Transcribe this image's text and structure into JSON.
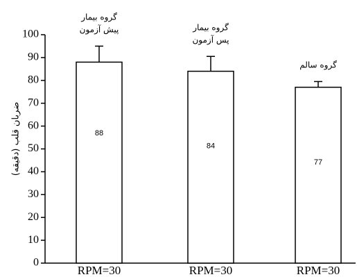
{
  "chart_data": {
    "type": "bar",
    "categories": [
      "RPM=30",
      "RPM=30",
      "RPM=30"
    ],
    "values": [
      88,
      84,
      77
    ],
    "errors": [
      7,
      6.5,
      2.5
    ],
    "data_labels": [
      "88",
      "84",
      "77"
    ],
    "group_labels": [
      [
        "گروه بیمار",
        "پیش آزمون"
      ],
      [
        "گروه بیمار",
        "پس آزمون"
      ],
      [
        "گروه سالم"
      ]
    ],
    "ylabel": "ضربان قلب (دقیقه)",
    "xlabel": "",
    "title": "",
    "ylim": [
      0,
      100
    ],
    "yticks": [
      0,
      10,
      20,
      30,
      40,
      50,
      60,
      70,
      80,
      90,
      100
    ],
    "grid": false,
    "bar_fill": "#ffffff",
    "bar_stroke": "#000000"
  }
}
